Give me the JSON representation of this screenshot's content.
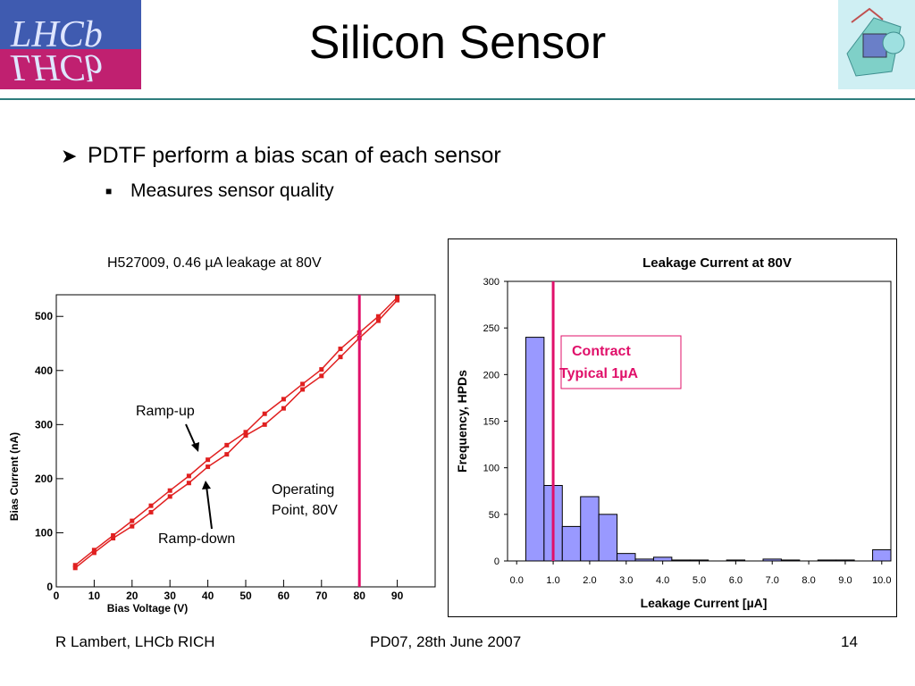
{
  "slide": {
    "title": "Silicon Sensor",
    "bullets": [
      {
        "text": "PDTF perform a bias scan of each sensor",
        "level": 1
      },
      {
        "text": "Measures sensor quality",
        "level": 2
      }
    ],
    "footer": {
      "left": "R Lambert, LHCb RICH",
      "center": "PD07, 28th June 2007",
      "right": "14"
    },
    "logo_text": "LHCb",
    "accent_color": "#2e7d7d"
  },
  "chart_data": [
    {
      "type": "line",
      "title": "H527009, 0.46 µA leakage at 80V",
      "xlabel": "Bias Voltage (V)",
      "ylabel": "Bias Current (nA)",
      "xlim": [
        0,
        100
      ],
      "ylim": [
        0,
        540
      ],
      "xticks": [
        0,
        10,
        20,
        30,
        40,
        50,
        60,
        70,
        80,
        90
      ],
      "yticks": [
        0,
        100,
        200,
        300,
        400,
        500
      ],
      "series": [
        {
          "name": "Ramp-up",
          "x": [
            5,
            10,
            15,
            20,
            25,
            30,
            35,
            40,
            45,
            50,
            55,
            60,
            65,
            70,
            75,
            80,
            85,
            90
          ],
          "y": [
            40,
            68,
            95,
            122,
            150,
            178,
            205,
            235,
            262,
            286,
            320,
            347,
            375,
            402,
            440,
            470,
            500,
            535
          ],
          "color": "#e02020"
        },
        {
          "name": "Ramp-down",
          "x": [
            5,
            10,
            15,
            20,
            25,
            30,
            35,
            40,
            45,
            50,
            55,
            60,
            65,
            70,
            75,
            80,
            85,
            90
          ],
          "y": [
            35,
            63,
            90,
            112,
            138,
            167,
            192,
            222,
            245,
            280,
            300,
            330,
            365,
            390,
            425,
            460,
            492,
            530
          ],
          "color": "#e02020"
        }
      ],
      "marker_line": {
        "x": 80,
        "color": "#e0106a"
      },
      "annotations": [
        "Ramp-up",
        "Ramp-down",
        "Operating",
        "Point, 80V"
      ],
      "grid": false
    },
    {
      "type": "bar",
      "title": "Leakage Current at 80V",
      "xlabel": "Leakage Current [µA]",
      "ylabel": "Frequency, HPDs",
      "bin_width": 0.5,
      "bin_start": 0.0,
      "values": [
        0,
        240,
        81,
        37,
        69,
        50,
        8,
        2,
        4,
        1,
        1,
        0,
        1,
        0,
        2,
        1,
        0,
        1,
        1,
        0,
        12
      ],
      "xticks": [
        "0.0",
        "1.0",
        "2.0",
        "3.0",
        "4.0",
        "5.0",
        "6.0",
        "7.0",
        "8.0",
        "9.0",
        "10.0"
      ],
      "yticks": [
        0,
        50,
        100,
        150,
        200,
        250,
        300
      ],
      "ylim": [
        0,
        300
      ],
      "xlim": [
        -0.25,
        10.25
      ],
      "bar_color": "#9999ff",
      "marker_line": {
        "x": 1.0,
        "color": "#e0106a"
      },
      "annotation": [
        "Contract",
        "Typical 1µA"
      ],
      "grid": false
    }
  ]
}
